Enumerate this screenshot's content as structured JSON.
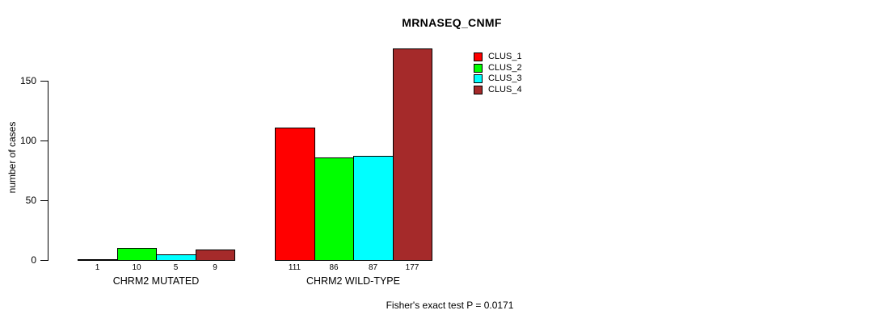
{
  "chart_data": {
    "type": "bar",
    "title": "MRNASEQ_CNMF",
    "ylabel": "number of cases",
    "xlabel": "",
    "ylim": [
      0,
      177
    ],
    "yticks": [
      0,
      50,
      100,
      150
    ],
    "grid": false,
    "legend_position": "top-right",
    "categories": [
      "CHRM2 MUTATED",
      "CHRM2 WILD-TYPE"
    ],
    "series": [
      {
        "name": "CLUS_1",
        "color": "#FF0000",
        "values": [
          1,
          111
        ]
      },
      {
        "name": "CLUS_2",
        "color": "#00FF00",
        "values": [
          10,
          86
        ]
      },
      {
        "name": "CLUS_3",
        "color": "#00FFFF",
        "values": [
          5,
          87
        ]
      },
      {
        "name": "CLUS_4",
        "color": "#A52A2A",
        "values": [
          9,
          177
        ]
      }
    ],
    "bar_value_labels": [
      [
        "1",
        "10",
        "5",
        "9"
      ],
      [
        "111",
        "86",
        "87",
        "177"
      ]
    ],
    "annotation": "Fisher's exact test P = 0.0171",
    "background_color": "#FFFFFF",
    "axis_color": "#000000"
  }
}
